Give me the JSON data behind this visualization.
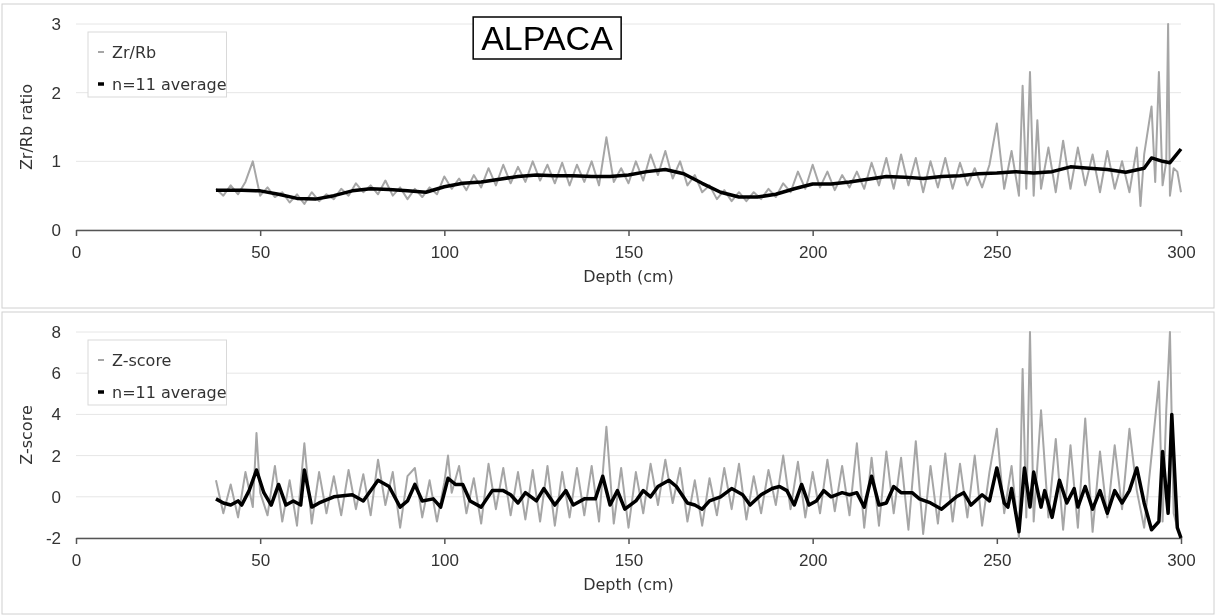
{
  "chart_data": [
    {
      "type": "line",
      "title": "ALPACA",
      "xlabel": "Depth (cm)",
      "ylabel": "Zr/Rb ratio",
      "xlim": [
        0,
        300
      ],
      "xticks": [
        0,
        50,
        100,
        150,
        200,
        250,
        300
      ],
      "ylim": [
        0,
        3
      ],
      "yticks": [
        0,
        1,
        2,
        3
      ],
      "grid": "y",
      "legend": "top left",
      "line_style": "solid",
      "marker": "none",
      "series": [
        {
          "name": "Zr/Rb",
          "color": "#a6a6a6",
          "x": [
            38,
            40,
            42,
            44,
            46,
            48,
            50,
            52,
            54,
            56,
            58,
            60,
            62,
            64,
            66,
            68,
            70,
            72,
            74,
            76,
            78,
            80,
            82,
            84,
            86,
            88,
            90,
            92,
            94,
            96,
            98,
            100,
            102,
            104,
            106,
            108,
            110,
            112,
            114,
            116,
            118,
            120,
            122,
            124,
            126,
            128,
            130,
            132,
            134,
            136,
            138,
            140,
            142,
            144,
            146,
            148,
            150,
            152,
            154,
            156,
            158,
            160,
            162,
            164,
            166,
            168,
            170,
            172,
            174,
            176,
            178,
            180,
            182,
            184,
            186,
            188,
            190,
            192,
            194,
            196,
            198,
            200,
            202,
            204,
            206,
            208,
            210,
            212,
            214,
            216,
            218,
            220,
            222,
            224,
            226,
            228,
            230,
            232,
            234,
            236,
            238,
            240,
            242,
            244,
            246,
            248,
            250,
            252,
            254,
            256,
            257,
            258,
            259,
            260,
            261,
            262,
            264,
            266,
            268,
            270,
            272,
            274,
            276,
            278,
            280,
            282,
            284,
            286,
            288,
            289,
            290,
            292,
            293,
            294,
            295,
            296,
            296.5,
            297,
            298,
            299,
            300
          ],
          "values": [
            0.6,
            0.5,
            0.65,
            0.52,
            0.7,
            1.0,
            0.5,
            0.62,
            0.48,
            0.55,
            0.4,
            0.52,
            0.38,
            0.55,
            0.42,
            0.52,
            0.45,
            0.6,
            0.5,
            0.68,
            0.55,
            0.65,
            0.52,
            0.72,
            0.5,
            0.62,
            0.45,
            0.6,
            0.48,
            0.62,
            0.52,
            0.78,
            0.6,
            0.75,
            0.58,
            0.8,
            0.62,
            0.9,
            0.65,
            0.95,
            0.68,
            0.92,
            0.7,
            1.0,
            0.72,
            0.95,
            0.68,
            0.98,
            0.65,
            0.95,
            0.7,
            1.0,
            0.65,
            1.35,
            0.7,
            0.9,
            0.68,
            1.0,
            0.72,
            1.1,
            0.8,
            1.15,
            0.75,
            1.0,
            0.65,
            0.8,
            0.55,
            0.65,
            0.45,
            0.58,
            0.42,
            0.55,
            0.42,
            0.55,
            0.45,
            0.6,
            0.48,
            0.68,
            0.55,
            0.85,
            0.6,
            0.95,
            0.62,
            0.85,
            0.58,
            0.8,
            0.62,
            0.85,
            0.6,
            0.98,
            0.65,
            1.05,
            0.6,
            1.1,
            0.65,
            1.05,
            0.55,
            1.0,
            0.62,
            1.05,
            0.6,
            0.98,
            0.65,
            0.9,
            0.62,
            0.95,
            1.55,
            0.6,
            1.15,
            0.5,
            2.1,
            0.6,
            2.3,
            0.5,
            1.6,
            0.6,
            1.2,
            0.55,
            1.3,
            0.6,
            1.2,
            0.65,
            1.1,
            0.55,
            1.15,
            0.6,
            1.0,
            0.55,
            1.2,
            0.35,
            1.1,
            1.8,
            0.7,
            2.3,
            0.65,
            1.0,
            3.0,
            0.5,
            0.9,
            0.85,
            0.55
          ]
        },
        {
          "name": "n=11 average",
          "color": "#000000",
          "x": [
            38,
            45,
            50,
            55,
            60,
            65,
            70,
            75,
            80,
            85,
            90,
            95,
            100,
            105,
            110,
            115,
            120,
            125,
            130,
            135,
            140,
            145,
            150,
            155,
            160,
            165,
            170,
            175,
            180,
            185,
            190,
            195,
            200,
            205,
            210,
            215,
            220,
            225,
            230,
            235,
            240,
            245,
            250,
            255,
            260,
            265,
            270,
            275,
            280,
            285,
            290,
            292,
            295,
            297,
            300
          ],
          "values": [
            0.58,
            0.58,
            0.57,
            0.52,
            0.46,
            0.45,
            0.5,
            0.57,
            0.6,
            0.59,
            0.57,
            0.55,
            0.63,
            0.68,
            0.7,
            0.74,
            0.78,
            0.8,
            0.79,
            0.79,
            0.78,
            0.78,
            0.8,
            0.85,
            0.88,
            0.82,
            0.68,
            0.55,
            0.48,
            0.48,
            0.52,
            0.6,
            0.67,
            0.67,
            0.7,
            0.74,
            0.78,
            0.77,
            0.75,
            0.78,
            0.79,
            0.82,
            0.83,
            0.85,
            0.83,
            0.85,
            0.92,
            0.9,
            0.88,
            0.84,
            0.9,
            1.05,
            1.0,
            0.98,
            1.18
          ]
        }
      ]
    },
    {
      "type": "line",
      "xlabel": "Depth (cm)",
      "ylabel": "Z-score",
      "xlim": [
        0,
        300
      ],
      "xticks": [
        0,
        50,
        100,
        150,
        200,
        250,
        300
      ],
      "ylim": [
        -2,
        8
      ],
      "yticks": [
        -2,
        0,
        2,
        4,
        6,
        8
      ],
      "grid": "y",
      "legend": "top left",
      "line_style": "solid",
      "marker": "none",
      "series": [
        {
          "name": "Z-score",
          "color": "#a6a6a6",
          "x": [
            38,
            40,
            42,
            44,
            46,
            48,
            49,
            50,
            52,
            54,
            56,
            58,
            60,
            62,
            64,
            66,
            68,
            70,
            72,
            74,
            76,
            78,
            80,
            82,
            84,
            86,
            88,
            90,
            92,
            94,
            96,
            98,
            100,
            101,
            102,
            104,
            106,
            108,
            110,
            112,
            114,
            116,
            118,
            120,
            122,
            124,
            126,
            128,
            130,
            132,
            134,
            136,
            138,
            140,
            142,
            144,
            146,
            148,
            150,
            152,
            154,
            156,
            158,
            160,
            162,
            164,
            166,
            168,
            170,
            172,
            174,
            176,
            178,
            180,
            182,
            184,
            186,
            188,
            190,
            192,
            194,
            196,
            198,
            200,
            202,
            204,
            206,
            208,
            210,
            212,
            214,
            216,
            218,
            220,
            222,
            224,
            226,
            228,
            230,
            232,
            234,
            236,
            238,
            240,
            242,
            244,
            246,
            248,
            250,
            252,
            254,
            256,
            257,
            258,
            259,
            260,
            262,
            264,
            266,
            268,
            270,
            272,
            274,
            276,
            278,
            280,
            282,
            284,
            286,
            288,
            290,
            292,
            294,
            295,
            296,
            297,
            298,
            299,
            300
          ],
          "values": [
            0.8,
            -0.8,
            0.6,
            -1.0,
            1.2,
            -0.5,
            3.1,
            0.2,
            -0.9,
            1.5,
            -1.2,
            0.8,
            -1.4,
            2.6,
            -1.3,
            1.2,
            -0.8,
            1.0,
            -0.9,
            1.3,
            -0.6,
            1.1,
            -0.9,
            1.8,
            -0.4,
            1.2,
            -1.5,
            1.0,
            1.4,
            -1.0,
            0.8,
            -1.2,
            0.7,
            2.0,
            0.2,
            1.5,
            -0.8,
            0.9,
            -1.3,
            1.6,
            -0.6,
            1.4,
            -0.9,
            1.2,
            -1.1,
            1.3,
            -1.2,
            1.5,
            -1.4,
            1.2,
            -1.0,
            1.4,
            -0.9,
            1.5,
            -1.2,
            3.4,
            -1.3,
            1.4,
            -1.5,
            1.2,
            -0.8,
            1.6,
            -0.4,
            1.8,
            -0.3,
            1.4,
            -1.2,
            0.8,
            -1.4,
            0.9,
            -0.9,
            1.4,
            -0.6,
            1.6,
            -1.1,
            1.0,
            -0.8,
            1.3,
            -0.4,
            2.0,
            -0.6,
            1.7,
            -1.0,
            1.2,
            -0.8,
            1.8,
            -0.7,
            1.5,
            -0.9,
            2.6,
            -1.5,
            1.9,
            -1.4,
            2.2,
            -0.8,
            1.9,
            -1.6,
            2.7,
            -1.8,
            1.5,
            -1.3,
            2.1,
            -1.2,
            1.6,
            -1.0,
            2.0,
            -1.4,
            1.2,
            3.3,
            -0.8,
            1.5,
            -2.0,
            6.2,
            -1.0,
            8.0,
            -1.2,
            4.2,
            -1.0,
            2.8,
            -1.6,
            2.5,
            -1.5,
            3.8,
            -1.7,
            2.2,
            -1.0,
            2.5,
            -0.6,
            3.3,
            0.3,
            -1.5,
            2.0,
            5.6,
            -1.2,
            4.2,
            8.0,
            -0.8,
            -1.5,
            -2.0
          ]
        },
        {
          "name": "n=11 average",
          "color": "#000000",
          "x": [
            38,
            40,
            42,
            44,
            45,
            47,
            49,
            51,
            53,
            55,
            57,
            59,
            61,
            62,
            64,
            66,
            70,
            75,
            78,
            82,
            85,
            88,
            90,
            92,
            94,
            97,
            99,
            101,
            103,
            105,
            107,
            110,
            113,
            116,
            118,
            120,
            122,
            125,
            127,
            130,
            133,
            135,
            138,
            141,
            143,
            145,
            147,
            149,
            152,
            154,
            156,
            158,
            161,
            163,
            166,
            168,
            170,
            172,
            175,
            178,
            181,
            183,
            186,
            189,
            191,
            193,
            195,
            197,
            199,
            201,
            203,
            205,
            208,
            210,
            212,
            214,
            216,
            218,
            220,
            222,
            224,
            227,
            229,
            232,
            235,
            237,
            239,
            241,
            243,
            246,
            248,
            250,
            252,
            253,
            254,
            256,
            257.5,
            259,
            260,
            262,
            263,
            265,
            267,
            269,
            271,
            272,
            274,
            276,
            278,
            280,
            282,
            284,
            286,
            288,
            290,
            292,
            294,
            295,
            296.5,
            297.5,
            299,
            300
          ],
          "values": [
            -0.1,
            -0.3,
            -0.4,
            -0.2,
            -0.4,
            0.3,
            1.3,
            0.2,
            -0.4,
            0.6,
            -0.4,
            -0.2,
            -0.4,
            1.3,
            -0.5,
            -0.3,
            0,
            0.1,
            -0.2,
            0.8,
            0.5,
            -0.5,
            -0.2,
            0.6,
            -0.2,
            -0.1,
            -0.5,
            0.9,
            0.6,
            0.6,
            -0.2,
            -0.5,
            0.3,
            0.3,
            0.1,
            -0.3,
            0.2,
            -0.2,
            0.4,
            -0.4,
            0.3,
            -0.4,
            -0.1,
            -0.1,
            1.0,
            -0.4,
            0.3,
            -0.6,
            -0.2,
            0.3,
            0.0,
            0.5,
            0.8,
            0.5,
            -0.3,
            -0.4,
            -0.6,
            -0.2,
            0,
            0.4,
            0.1,
            -0.4,
            0.1,
            0.4,
            0.5,
            0.3,
            -0.4,
            0.6,
            -0.4,
            -0.2,
            0.3,
            0,
            0.2,
            0.1,
            0.2,
            -0.5,
            1.0,
            -0.4,
            -0.3,
            0.5,
            0.2,
            0.2,
            -0.1,
            -0.3,
            -0.6,
            -0.3,
            0.0,
            0.2,
            -0.4,
            0.1,
            -0.2,
            1.4,
            -0.3,
            -0.5,
            0.4,
            -1.7,
            1.4,
            -0.5,
            1.2,
            -0.5,
            0.3,
            -1.0,
            0.8,
            -0.3,
            0.4,
            -0.5,
            0.5,
            -0.6,
            0.3,
            -0.8,
            0.3,
            -0.3,
            0.3,
            1.4,
            -0.3,
            -1.6,
            -1.2,
            2.2,
            -0.8,
            4.0,
            -1.5,
            -2.0
          ]
        }
      ]
    }
  ]
}
